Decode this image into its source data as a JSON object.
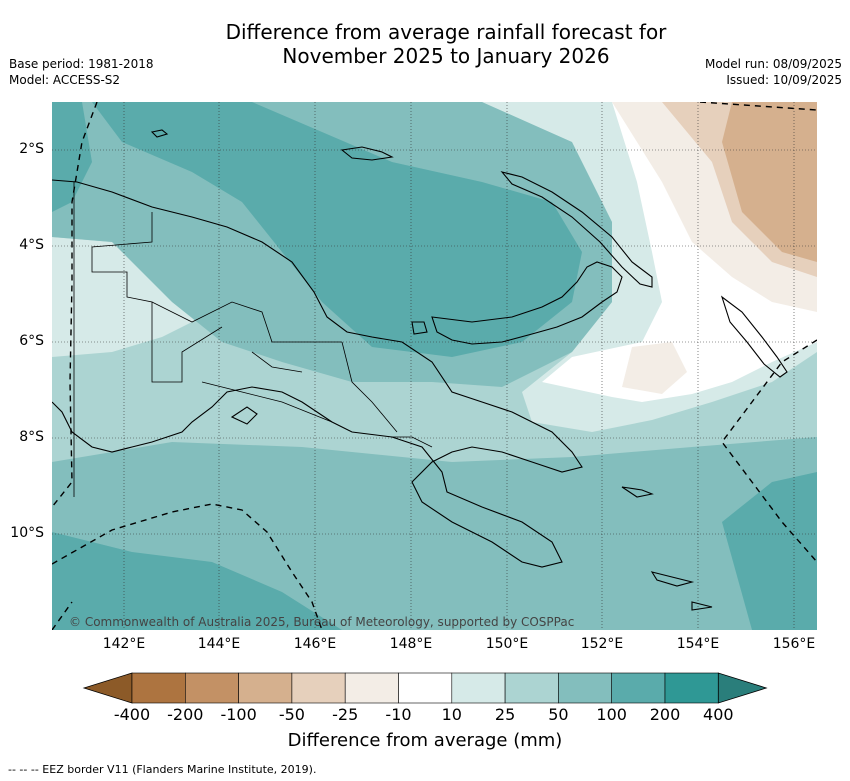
{
  "title_line1": "Difference from average rainfall forecast for",
  "title_line2": "November 2025 to January 2026",
  "meta_left": [
    "Base period: 1981-2018",
    "Model: ACCESS-S2"
  ],
  "meta_right": [
    "Model run: 08/09/2025",
    "Issued: 10/09/2025"
  ],
  "map": {
    "lon_ticks": [
      "142°E",
      "144°E",
      "146°E",
      "148°E",
      "150°E",
      "152°E",
      "154°E",
      "156°E"
    ],
    "lat_ticks": [
      "2°S",
      "4°S",
      "6°S",
      "8°S",
      "10°S"
    ],
    "extent": {
      "lon_min": 140.5,
      "lon_max": 156.5,
      "lat_min": -11.8,
      "lat_max": -1.0
    },
    "copyright": "© Commonwealth of Australia 2025, Bureau of Meteorology, supported by COSPPac"
  },
  "colorbar": {
    "title": "Difference from average (mm)",
    "labels": [
      "-400",
      "-200",
      "-100",
      "-50",
      "-25",
      "-10",
      "10",
      "25",
      "50",
      "100",
      "200",
      "400"
    ],
    "colors": [
      "#8c5a28",
      "#ad7440",
      "#c39165",
      "#d5b08e",
      "#e6d0bc",
      "#f3ede6",
      "#ffffff",
      "#d6eae8",
      "#acd4d2",
      "#83bebd",
      "#5aabab",
      "#2f9895",
      "#2a7e7b"
    ]
  },
  "footnote": "-- -- -- EEZ border V11 (Flanders Marine Institute, 2019)."
}
